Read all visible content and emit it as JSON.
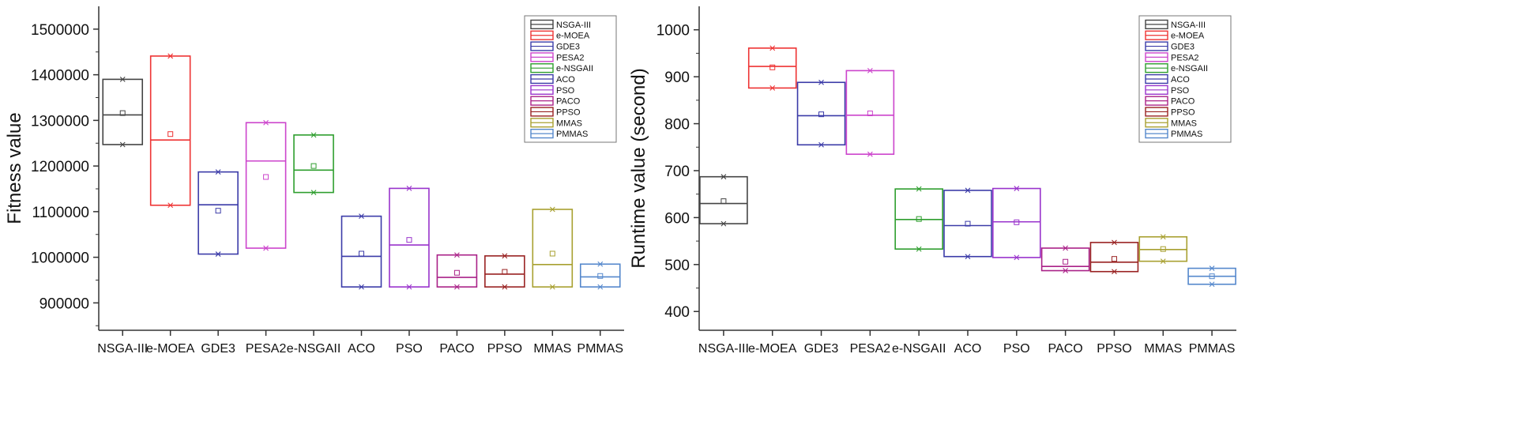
{
  "chart_data": [
    {
      "type": "box",
      "ylabel": "Fitness value",
      "xlabel": "",
      "ylim": [
        840000,
        1550000
      ],
      "yticks": [
        900000,
        1000000,
        1100000,
        1200000,
        1300000,
        1400000,
        1500000
      ],
      "categories": [
        "NSGA-III",
        "e-MOEA",
        "GDE3",
        "PESA2",
        "e-NSGAII",
        "ACO",
        "PSO",
        "PACO",
        "PPSO",
        "MMAS",
        "PMMAS"
      ],
      "colors": [
        "#444444",
        "#ee3333",
        "#3b3ba8",
        "#cc44cc",
        "#2e9e2e",
        "#3b3ba8",
        "#9933cc",
        "#aa2288",
        "#992222",
        "#a8a030",
        "#5588cc"
      ],
      "series": [
        {
          "name": "NSGA-III",
          "q1": 1247000,
          "q3": 1390000,
          "median": 1312000,
          "mean": 1316000,
          "min": 1247000,
          "max": 1390000
        },
        {
          "name": "e-MOEA",
          "q1": 1114000,
          "q3": 1441000,
          "median": 1257000,
          "mean": 1270000,
          "min": 1114000,
          "max": 1441000
        },
        {
          "name": "GDE3",
          "q1": 1007000,
          "q3": 1187000,
          "median": 1115000,
          "mean": 1102000,
          "min": 1007000,
          "max": 1187000
        },
        {
          "name": "PESA2",
          "q1": 1020000,
          "q3": 1295000,
          "median": 1211000,
          "mean": 1176000,
          "min": 1020000,
          "max": 1295000
        },
        {
          "name": "e-NSGAII",
          "q1": 1142000,
          "q3": 1268000,
          "median": 1191000,
          "mean": 1200000,
          "min": 1142000,
          "max": 1268000
        },
        {
          "name": "ACO",
          "q1": 935000,
          "q3": 1090000,
          "median": 1002000,
          "mean": 1008000,
          "min": 935000,
          "max": 1090000
        },
        {
          "name": "PSO",
          "q1": 935000,
          "q3": 1151000,
          "median": 1027000,
          "mean": 1038000,
          "min": 935000,
          "max": 1151000
        },
        {
          "name": "PACO",
          "q1": 935000,
          "q3": 1005000,
          "median": 956000,
          "mean": 966000,
          "min": 935000,
          "max": 1005000
        },
        {
          "name": "PPSO",
          "q1": 935000,
          "q3": 1003000,
          "median": 963000,
          "mean": 968000,
          "min": 935000,
          "max": 1003000
        },
        {
          "name": "MMAS",
          "q1": 935000,
          "q3": 1105000,
          "median": 984000,
          "mean": 1008000,
          "min": 935000,
          "max": 1105000
        },
        {
          "name": "PMMAS",
          "q1": 935000,
          "q3": 985000,
          "median": 957000,
          "mean": 959000,
          "min": 935000,
          "max": 985000
        }
      ],
      "legend": {
        "position": "top-right",
        "entries": [
          "NSGA-III",
          "e-MOEA",
          "GDE3",
          "PESA2",
          "e-NSGAII",
          "ACO",
          "PSO",
          "PACO",
          "PPSO",
          "MMAS",
          "PMMAS"
        ]
      }
    },
    {
      "type": "box",
      "ylabel": "Runtime value (second)",
      "xlabel": "",
      "ylim": [
        360,
        1050
      ],
      "yticks": [
        400,
        500,
        600,
        700,
        800,
        900,
        1000
      ],
      "categories": [
        "NSGA-III",
        "e-MOEA",
        "GDE3",
        "PESA2",
        "e-NSGAII",
        "ACO",
        "PSO",
        "PACO",
        "PPSO",
        "MMAS",
        "PMMAS"
      ],
      "colors": [
        "#444444",
        "#ee3333",
        "#3b3ba8",
        "#cc44cc",
        "#2e9e2e",
        "#3b3ba8",
        "#9933cc",
        "#aa2288",
        "#992222",
        "#a8a030",
        "#5588cc"
      ],
      "series": [
        {
          "name": "NSGA-III",
          "q1": 587,
          "q3": 687,
          "median": 630,
          "mean": 635,
          "min": 587,
          "max": 687
        },
        {
          "name": "e-MOEA",
          "q1": 876,
          "q3": 961,
          "median": 922,
          "mean": 920,
          "min": 876,
          "max": 961
        },
        {
          "name": "GDE3",
          "q1": 755,
          "q3": 888,
          "median": 817,
          "mean": 820,
          "min": 755,
          "max": 888
        },
        {
          "name": "PESA2",
          "q1": 735,
          "q3": 913,
          "median": 818,
          "mean": 822,
          "min": 735,
          "max": 913
        },
        {
          "name": "e-NSGAII",
          "q1": 533,
          "q3": 661,
          "median": 596,
          "mean": 597,
          "min": 533,
          "max": 661
        },
        {
          "name": "ACO",
          "q1": 517,
          "q3": 658,
          "median": 583,
          "mean": 587,
          "min": 517,
          "max": 658
        },
        {
          "name": "PSO",
          "q1": 515,
          "q3": 662,
          "median": 591,
          "mean": 590,
          "min": 515,
          "max": 662
        },
        {
          "name": "PACO",
          "q1": 487,
          "q3": 535,
          "median": 496,
          "mean": 506,
          "min": 487,
          "max": 535
        },
        {
          "name": "PPSO",
          "q1": 485,
          "q3": 547,
          "median": 505,
          "mean": 512,
          "min": 485,
          "max": 547
        },
        {
          "name": "MMAS",
          "q1": 507,
          "q3": 559,
          "median": 532,
          "mean": 533,
          "min": 507,
          "max": 559
        },
        {
          "name": "PMMAS",
          "q1": 458,
          "q3": 492,
          "median": 475,
          "mean": 475,
          "min": 458,
          "max": 492
        }
      ],
      "legend": {
        "position": "top-right",
        "entries": [
          "NSGA-III",
          "e-MOEA",
          "GDE3",
          "PESA2",
          "e-NSGAII",
          "ACO",
          "PSO",
          "PACO",
          "PPSO",
          "MMAS",
          "PMMAS"
        ]
      }
    }
  ]
}
